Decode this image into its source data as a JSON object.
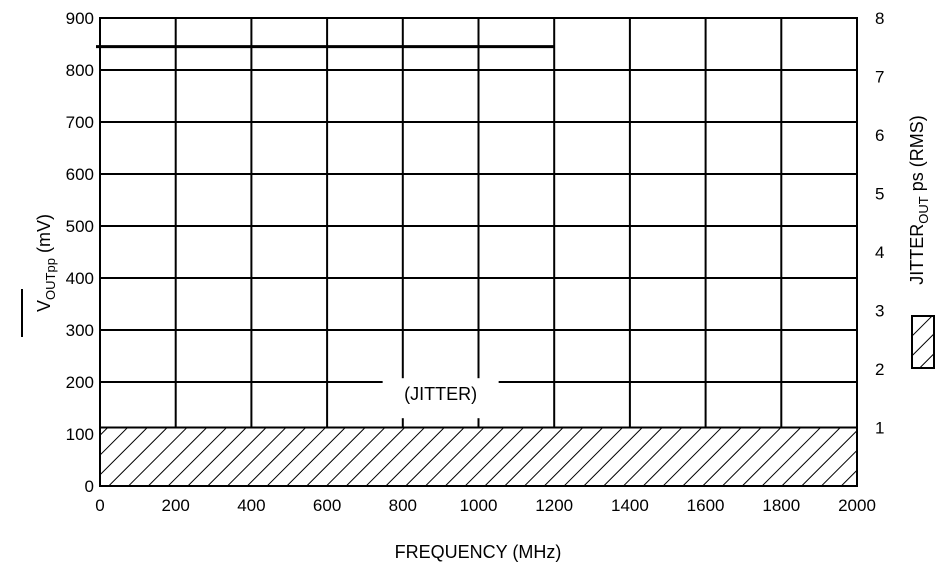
{
  "chart_data": {
    "type": "line",
    "xlabel": "FREQUENCY (MHz)",
    "ylabel": {
      "main": "V",
      "sub": "OUTpp",
      "unit": " (mV)"
    },
    "y2label": {
      "main": "JITTER",
      "sub": "OUT",
      "unit": " ps (RMS)"
    },
    "annotation": "(JITTER)",
    "xlim": [
      0,
      2000
    ],
    "ylim": [
      0,
      900
    ],
    "y2lim": [
      0,
      8
    ],
    "xticks": [
      "0",
      "200",
      "400",
      "600",
      "800",
      "1000",
      "1200",
      "1400",
      "1600",
      "1800",
      "2000"
    ],
    "yticks": [
      "0",
      "100",
      "200",
      "300",
      "400",
      "500",
      "600",
      "700",
      "800",
      "900"
    ],
    "y2ticks": [
      "1",
      "2",
      "3",
      "4",
      "5",
      "6",
      "7",
      "8"
    ],
    "grid": true,
    "series": [
      {
        "style": "solid-line",
        "axis": "left",
        "x": [
          0,
          1200
        ],
        "y": [
          845,
          845
        ]
      },
      {
        "style": "hatched-area",
        "axis": "right",
        "x": [
          0,
          2000
        ],
        "y": [
          1,
          1
        ]
      }
    ]
  }
}
